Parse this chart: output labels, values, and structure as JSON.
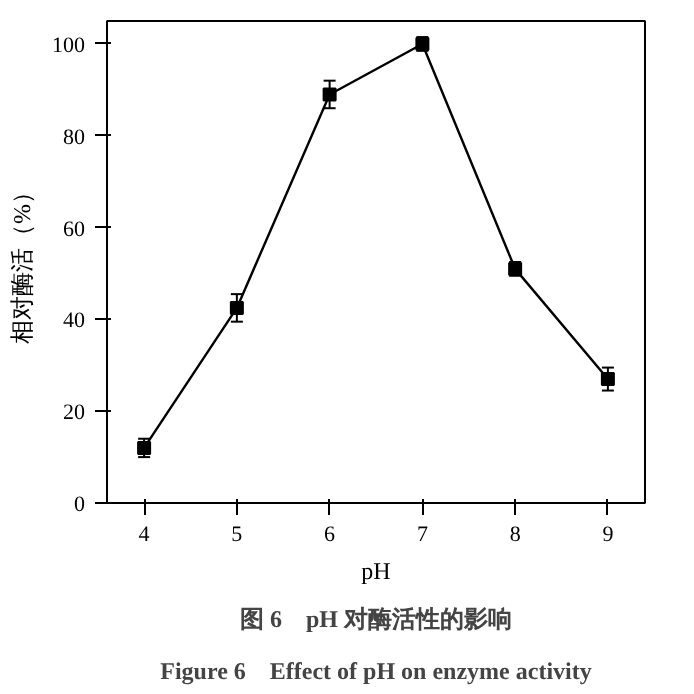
{
  "chart_data": {
    "type": "line",
    "xlabel": "pH",
    "ylabel": "相对酶活（%）",
    "x": [
      4,
      5,
      6,
      7,
      8,
      9
    ],
    "series": [
      {
        "color": "#000000",
        "values": [
          12,
          42.5,
          89,
          100,
          51,
          27
        ],
        "errors": [
          2,
          3,
          3,
          1.5,
          1.5,
          2.5
        ]
      }
    ],
    "xlim": [
      3.6,
      9.4
    ],
    "ylim": [
      0,
      105
    ],
    "xticks": [
      4,
      5,
      6,
      7,
      8,
      9
    ],
    "yticks": [
      0,
      20,
      40,
      60,
      80,
      100
    ],
    "marker": "square",
    "line_style": "solid",
    "grid": false,
    "annotations": [
      "图 6　pH 对酶活性的影响",
      "Figure 6　Effect of pH on enzyme activity"
    ]
  }
}
